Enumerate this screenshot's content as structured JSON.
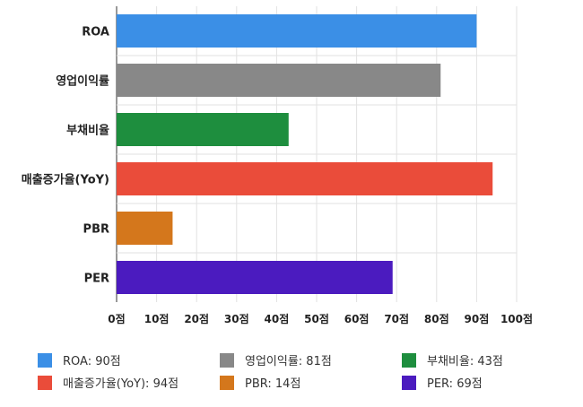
{
  "chart_data": {
    "type": "bar",
    "orientation": "horizontal",
    "categories": [
      "ROA",
      "영업이익률",
      "부채비율",
      "매출증가율(YoY)",
      "PBR",
      "PER"
    ],
    "values": [
      90,
      81,
      43,
      94,
      14,
      69
    ],
    "colors": [
      "#3b8fe6",
      "#888888",
      "#1e8e3e",
      "#ea4c3a",
      "#d4771c",
      "#4b1bbf"
    ],
    "xlim": [
      0,
      100
    ],
    "xticks": [
      0,
      10,
      20,
      30,
      40,
      50,
      60,
      70,
      80,
      90,
      100
    ],
    "tick_suffix": "점",
    "grid": true,
    "legend_position": "bottom",
    "legend": [
      "ROA: 90점",
      "영업이익률: 81점",
      "부채비율: 43점",
      "매출증가율(YoY): 94점",
      "PBR: 14점",
      "PER: 69점"
    ]
  }
}
